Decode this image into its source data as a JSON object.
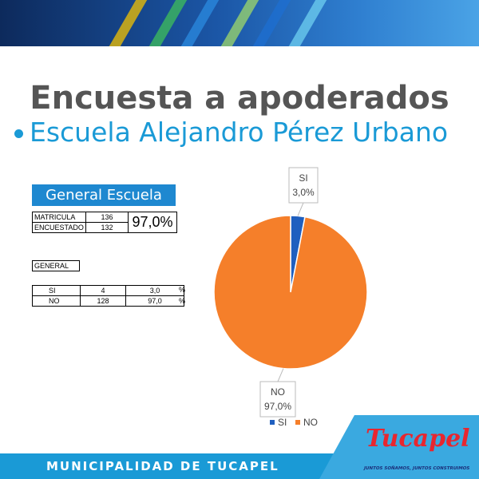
{
  "header": {
    "title": "Encuesta a apoderados",
    "subtitle": "Escuela Alejandro Pérez Urbano"
  },
  "summary": {
    "heading": "General Escuela",
    "matricula_label": "MATRICULA",
    "matricula_value": "136",
    "encuestado_label": "ENCUESTADO",
    "encuestado_value": "132",
    "percent": "97,0%"
  },
  "general_table": {
    "label": "GENERAL",
    "rows": [
      {
        "label": "SI",
        "count": "4",
        "pct": "3,0",
        "unit": "%"
      },
      {
        "label": "NO",
        "count": "128",
        "pct": "97,0",
        "unit": "%"
      }
    ]
  },
  "chart_data": {
    "type": "pie",
    "categories": [
      "SI",
      "NO"
    ],
    "values": [
      3.0,
      97.0
    ],
    "data_labels": [
      "3,0%",
      "97,0%"
    ],
    "colors": [
      "#1f5fbf",
      "#f57f2a"
    ],
    "legend": [
      "SI",
      "NO"
    ],
    "legend_placement": "bottom"
  },
  "footer": {
    "text": "MUNICIPALIDAD DE TUCAPEL",
    "logo_name": "Tucapel",
    "logo_tagline": "JUNTOS SOÑAMOS, JUNTOS CONSTRUIMOS"
  }
}
